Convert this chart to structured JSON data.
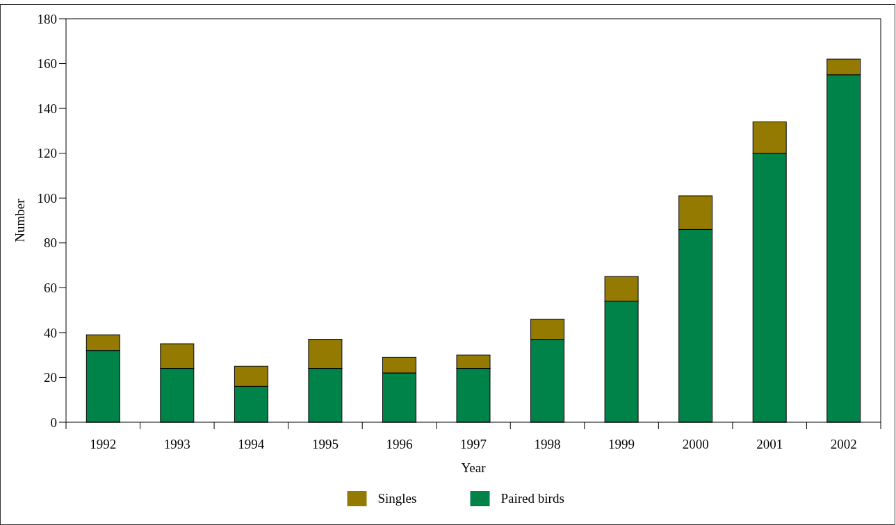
{
  "chart_data": {
    "type": "bar",
    "stacked": true,
    "xlabel": "Year",
    "ylabel": "Number",
    "categories": [
      "1992",
      "1993",
      "1994",
      "1995",
      "1996",
      "1997",
      "1998",
      "1999",
      "2000",
      "2001",
      "2002"
    ],
    "series": [
      {
        "name": "Paired birds",
        "color": "#008348",
        "values": [
          32,
          24,
          16,
          24,
          22,
          24,
          37,
          54,
          86,
          120,
          155
        ]
      },
      {
        "name": "Singles",
        "color": "#947a00",
        "values": [
          7,
          11,
          9,
          13,
          7,
          6,
          9,
          11,
          15,
          14,
          7
        ]
      }
    ],
    "ylim": [
      0,
      180
    ],
    "yticks": [
      0,
      20,
      40,
      60,
      80,
      100,
      120,
      140,
      160,
      180
    ],
    "grid": false,
    "legend": "bottom"
  }
}
